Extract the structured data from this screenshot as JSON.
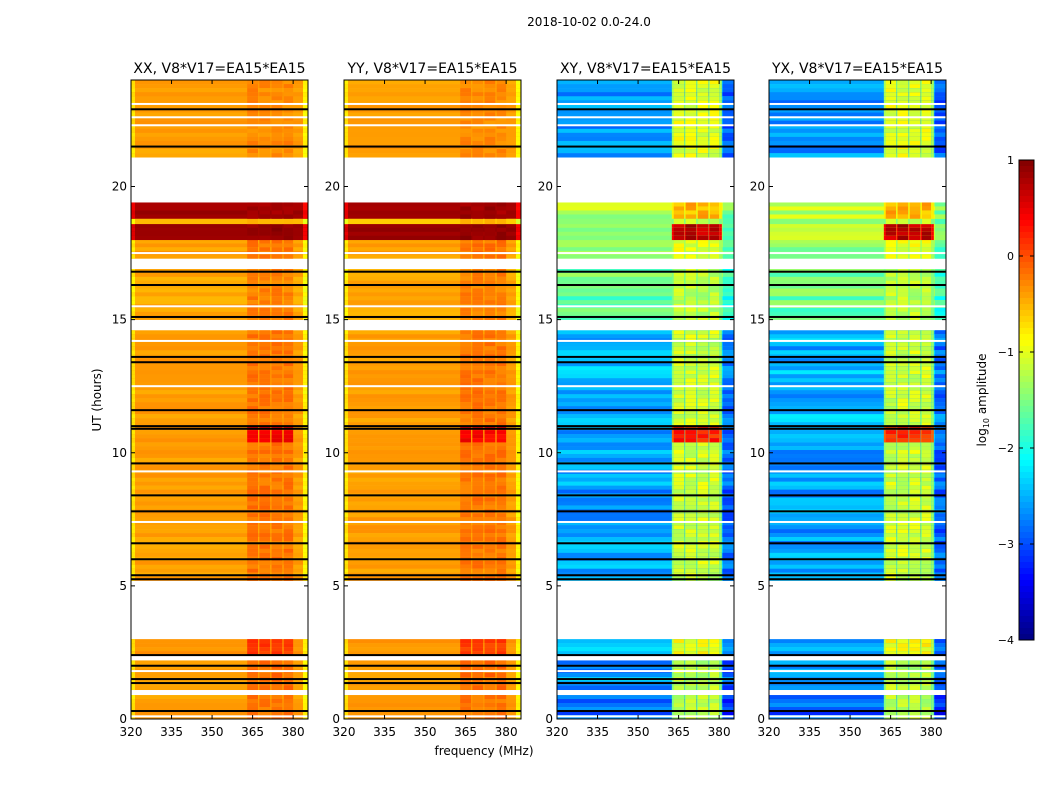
{
  "chart_data": {
    "type": "heatmap",
    "suptitle": "2018-10-02 0.0-24.0",
    "xlabel": "frequency (MHz)",
    "ylabel": "UT (hours)",
    "xlim": [
      320,
      385.5
    ],
    "ylim": [
      0,
      24
    ],
    "xticks": [
      320,
      335,
      350,
      365,
      380
    ],
    "yticks": [
      0,
      5,
      10,
      15,
      20
    ],
    "rfi_band_mhz": [
      363,
      380
    ],
    "rfi_subbands_mhz": [
      [
        363,
        367
      ],
      [
        367.5,
        371.5
      ],
      [
        372,
        376
      ],
      [
        376.5,
        380
      ]
    ],
    "panels": [
      {
        "title": "XX, V8*V17=EA15*EA15",
        "kind": "parallel"
      },
      {
        "title": "YY, V8*V17=EA15*EA15",
        "kind": "parallel"
      },
      {
        "title": "XY, V8*V17=EA15*EA15",
        "kind": "cross"
      },
      {
        "title": "YX, V8*V17=EA15*EA15",
        "kind": "cross"
      }
    ],
    "segments_note": "[t_start_h, t_end_h, parallel_log10, cross_log10, parallel_rfi_log10, cross_rfi_log10]",
    "segments": [
      [
        0.0,
        0.9,
        -0.4,
        -2.9,
        -0.2,
        -1.2
      ],
      [
        1.1,
        2.2,
        -0.4,
        -2.6,
        -0.15,
        -1.2
      ],
      [
        2.4,
        3.0,
        -0.35,
        -2.5,
        0.1,
        -0.9
      ],
      [
        5.2,
        10.4,
        -0.4,
        -2.6,
        -0.2,
        -1.1
      ],
      [
        10.4,
        11.0,
        -0.4,
        -2.6,
        0.4,
        0.2
      ],
      [
        11.0,
        14.6,
        -0.4,
        -2.5,
        -0.2,
        -1.1
      ],
      [
        15.0,
        16.9,
        -0.45,
        -1.6,
        -0.25,
        -1.2
      ],
      [
        17.3,
        18.0,
        -0.4,
        -1.5,
        -0.2,
        -1.0
      ],
      [
        18.0,
        18.6,
        0.9,
        -1.3,
        0.9,
        0.7
      ],
      [
        18.6,
        18.8,
        -0.6,
        -1.4,
        -0.5,
        -1.2
      ],
      [
        18.8,
        19.4,
        0.85,
        -1.2,
        0.85,
        -0.5
      ],
      [
        21.1,
        24.0,
        -0.4,
        -2.6,
        -0.3,
        -1.0
      ]
    ],
    "flagged_black_hours": [
      0.3,
      1.35,
      1.5,
      2.0,
      2.4,
      5.25,
      5.4,
      6.0,
      6.6,
      7.8,
      8.4,
      9.6,
      10.9,
      11.0,
      11.6,
      13.4,
      13.6,
      15.1,
      16.3,
      16.8,
      21.5,
      22.9
    ],
    "blank_hours": [
      0.1,
      1.8,
      7.4,
      9.3,
      12.5,
      14.2,
      15.5,
      17.5,
      20.9,
      22.3,
      22.6,
      23.1
    ],
    "colorbar": {
      "label_main": "log",
      "label_sub": "10",
      "label_tail": " amplitude",
      "range": [
        -4,
        1
      ],
      "ticks": [
        1,
        0,
        -1,
        -2,
        -3,
        -4
      ],
      "tick_labels": [
        "1",
        "0",
        "−1",
        "−2",
        "−3",
        "−4"
      ],
      "colormap": "jet"
    }
  }
}
